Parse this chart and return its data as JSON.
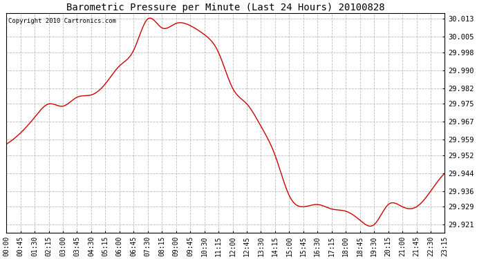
{
  "title": "Barometric Pressure per Minute (Last 24 Hours) 20100828",
  "copyright": "Copyright 2010 Cartronics.com",
  "line_color": "#cc0000",
  "background_color": "#ffffff",
  "grid_color": "#bbbbbb",
  "yticks": [
    29.921,
    29.929,
    29.936,
    29.944,
    29.952,
    29.959,
    29.967,
    29.975,
    29.982,
    29.99,
    29.998,
    30.005,
    30.013
  ],
  "ymin": 29.9175,
  "ymax": 30.0155,
  "xtick_labels": [
    "00:00",
    "00:45",
    "01:30",
    "02:15",
    "03:00",
    "03:45",
    "04:30",
    "05:15",
    "06:00",
    "06:45",
    "07:30",
    "08:15",
    "09:00",
    "09:45",
    "10:30",
    "11:15",
    "12:00",
    "12:45",
    "13:30",
    "14:15",
    "15:00",
    "15:45",
    "16:30",
    "17:15",
    "18:00",
    "18:45",
    "19:30",
    "20:15",
    "21:00",
    "21:45",
    "22:30",
    "23:15"
  ],
  "key_points": {
    "00:00": 29.957,
    "00:45": 29.962,
    "01:30": 29.969,
    "02:15": 29.975,
    "03:00": 29.974,
    "03:45": 29.978,
    "04:30": 29.979,
    "05:15": 29.984,
    "06:00": 29.992,
    "06:45": 29.999,
    "07:30": 30.013,
    "08:15": 30.009,
    "09:00": 30.011,
    "09:45": 30.01,
    "10:30": 30.006,
    "11:15": 29.998,
    "12:00": 29.982,
    "12:45": 29.975,
    "13:30": 29.965,
    "14:15": 29.952,
    "15:00": 29.934,
    "15:45": 29.929,
    "16:30": 29.93,
    "17:15": 29.928,
    "18:00": 29.927,
    "18:45": 29.923,
    "19:30": 29.921,
    "20:15": 29.93,
    "21:00": 29.929,
    "21:45": 29.929,
    "22:30": 29.936,
    "23:15": 29.944
  }
}
